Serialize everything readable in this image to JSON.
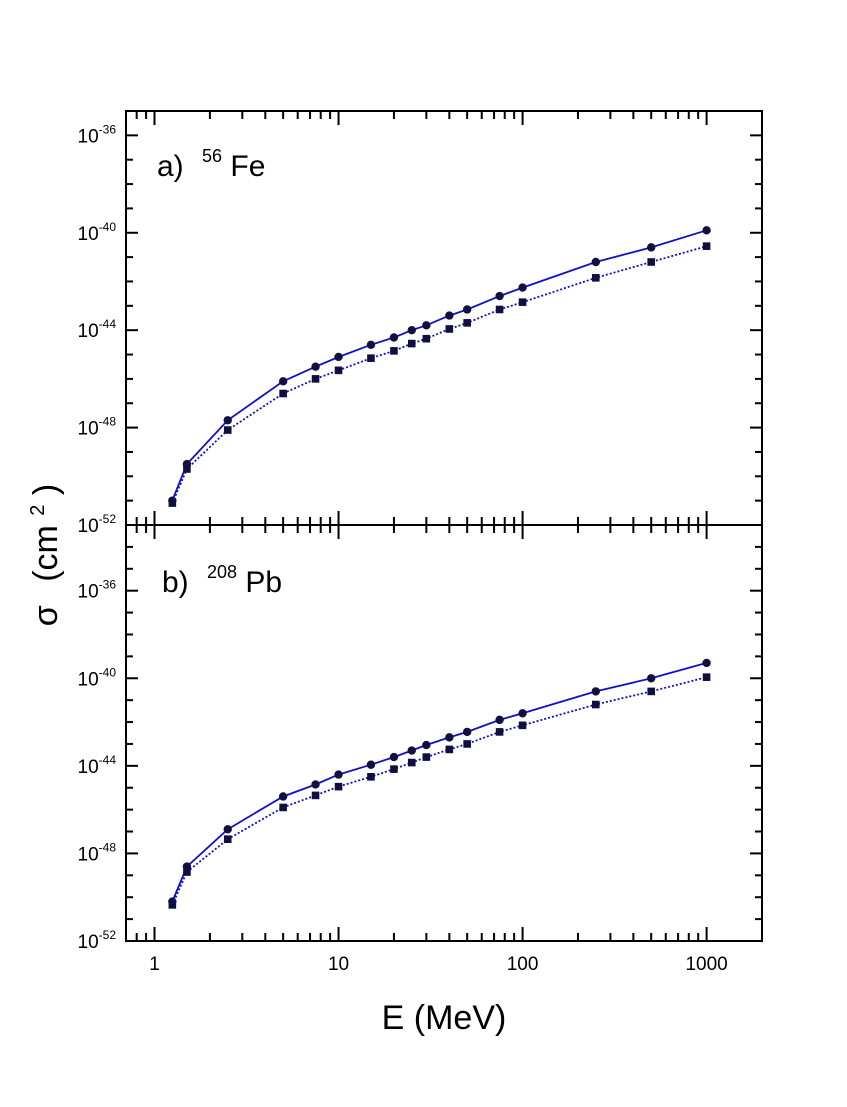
{
  "chart_data": {
    "type": "line",
    "xlabel": "E  (MeV)",
    "ylabel": {
      "symbol": "σ",
      "open": "(cm",
      "exp": "2",
      "close": ")"
    },
    "xscale": "log",
    "yscale": "log",
    "xlim": [
      0.7,
      2000
    ],
    "x_ticks": [
      {
        "value": 1,
        "label": "1"
      },
      {
        "value": 10,
        "label": "10"
      },
      {
        "value": 100,
        "label": "100"
      },
      {
        "value": 1000,
        "label": "1000"
      }
    ],
    "colors": {
      "line": "#1010c8",
      "marker": "#101040",
      "axis": "#000000"
    },
    "panels": [
      {
        "id": "a",
        "label_prefix": "a)",
        "label_mass": "56",
        "label_element": "Fe",
        "ylim_exp": [
          -52,
          -35
        ],
        "y_ticks": [
          {
            "exp": -52,
            "base": "10",
            "sup": "-52"
          },
          {
            "exp": -48,
            "base": "10",
            "sup": "-48"
          },
          {
            "exp": -44,
            "base": "10",
            "sup": "-44"
          },
          {
            "exp": -40,
            "base": "10",
            "sup": "-40"
          },
          {
            "exp": -36,
            "base": "10",
            "sup": "-36"
          }
        ],
        "series": [
          {
            "name": "upper (circles, solid)",
            "marker": "circle",
            "linestyle": "solid",
            "x": [
              1.25,
              1.5,
              2.5,
              5,
              7.5,
              10,
              15,
              20,
              25,
              30,
              40,
              50,
              75,
              100,
              250,
              500,
              1000
            ],
            "log10_y": [
              -51.0,
              -49.5,
              -47.7,
              -46.1,
              -45.5,
              -45.1,
              -44.6,
              -44.3,
              -44.0,
              -43.8,
              -43.4,
              -43.15,
              -42.6,
              -42.25,
              -41.2,
              -40.6,
              -39.9
            ]
          },
          {
            "name": "lower (squares, dotted)",
            "marker": "square",
            "linestyle": "dotted",
            "x": [
              1.25,
              1.5,
              2.5,
              5,
              7.5,
              10,
              15,
              20,
              25,
              30,
              40,
              50,
              75,
              100,
              250,
              500,
              1000
            ],
            "log10_y": [
              -51.1,
              -49.7,
              -48.1,
              -46.6,
              -46.0,
              -45.65,
              -45.15,
              -44.85,
              -44.55,
              -44.35,
              -43.95,
              -43.7,
              -43.15,
              -42.85,
              -41.85,
              -41.2,
              -40.55
            ]
          }
        ]
      },
      {
        "id": "b",
        "label_prefix": "b)",
        "label_mass": "208",
        "label_element": "Pb",
        "ylim_exp": [
          -52,
          -33
        ],
        "y_ticks": [
          {
            "exp": -52,
            "base": "10",
            "sup": "-52"
          },
          {
            "exp": -48,
            "base": "10",
            "sup": "-48"
          },
          {
            "exp": -44,
            "base": "10",
            "sup": "-44"
          },
          {
            "exp": -40,
            "base": "10",
            "sup": "-40"
          },
          {
            "exp": -36,
            "base": "10",
            "sup": "-36"
          }
        ],
        "series": [
          {
            "name": "upper (circles, solid)",
            "marker": "circle",
            "linestyle": "solid",
            "x": [
              1.25,
              1.5,
              2.5,
              5,
              7.5,
              10,
              15,
              20,
              25,
              30,
              40,
              50,
              75,
              100,
              250,
              500,
              1000
            ],
            "log10_y": [
              -50.2,
              -48.6,
              -46.9,
              -45.4,
              -44.85,
              -44.4,
              -43.95,
              -43.6,
              -43.3,
              -43.05,
              -42.7,
              -42.45,
              -41.9,
              -41.6,
              -40.6,
              -40.0,
              -39.3
            ]
          },
          {
            "name": "lower (squares, dotted)",
            "marker": "square",
            "linestyle": "dotted",
            "x": [
              1.25,
              1.5,
              2.5,
              5,
              7.5,
              10,
              15,
              20,
              25,
              30,
              40,
              50,
              75,
              100,
              250,
              500,
              1000
            ],
            "log10_y": [
              -50.35,
              -48.85,
              -47.35,
              -45.9,
              -45.35,
              -44.95,
              -44.5,
              -44.15,
              -43.85,
              -43.6,
              -43.25,
              -43.0,
              -42.45,
              -42.15,
              -41.2,
              -40.6,
              -39.95
            ]
          }
        ]
      }
    ]
  }
}
